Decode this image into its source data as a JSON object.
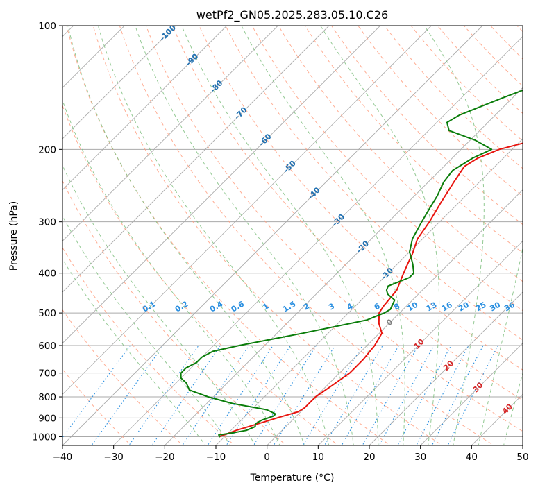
{
  "chart_data": {
    "type": "line",
    "subtype": "skew-t log-p diagram",
    "title": "wetPf2_GN05.2025.283.05.10.C26",
    "xlabel": "Temperature (°C)",
    "ylabel": "Pressure (hPa)",
    "xlim": [
      -40,
      50
    ],
    "ylim": [
      1050,
      100
    ],
    "y_scale": "log",
    "grid": true,
    "x_ticks": [
      "−40",
      "−30",
      "−20",
      "−10",
      "0",
      "10",
      "20",
      "30",
      "40",
      "50"
    ],
    "y_ticks": [
      "100",
      "200",
      "300",
      "400",
      "500",
      "600",
      "700",
      "800",
      "900",
      "1000"
    ],
    "y_tick_values": [
      100,
      200,
      300,
      400,
      500,
      600,
      700,
      800,
      900,
      1000
    ],
    "isotherm_labels": [
      "-100",
      "-90",
      "-80",
      "-70",
      "-60",
      "-50",
      "-40",
      "-30",
      "-20",
      "-10",
      "0",
      "10",
      "20",
      "30",
      "40"
    ],
    "mixing_ratio_labels": [
      "0.1",
      "0.2",
      "0.4",
      "0.6",
      "1",
      "1.5",
      "2",
      "3",
      "4",
      "6",
      "8",
      "10",
      "13",
      "16",
      "20",
      "25",
      "30",
      "36"
    ],
    "colors": {
      "temperature": "#e8140e",
      "dewpoint": "#0a7d0a",
      "isotherm_label_cold": "#1f6fb0",
      "isotherm_label_warm": "#d62728",
      "isotherm_label_zero": "#808080",
      "mixing_ratio": "#2a8fe0",
      "dry_adiabat": "#ff9f80",
      "moist_adiabat": "#80c080",
      "grid": "#aaaaaa"
    },
    "series": [
      {
        "key": "temperature",
        "points": [
          [
            -11.0,
            1000
          ],
          [
            -9.0,
            965
          ],
          [
            -6.0,
            930
          ],
          [
            -3.0,
            895
          ],
          [
            -0.5,
            870
          ],
          [
            0.0,
            850
          ],
          [
            0.0,
            800
          ],
          [
            1.0,
            750
          ],
          [
            2.0,
            700
          ],
          [
            2.0,
            650
          ],
          [
            1.5,
            600
          ],
          [
            0.5,
            560
          ],
          [
            -2.0,
            530
          ],
          [
            -4.0,
            500
          ],
          [
            -4.5,
            480
          ],
          [
            -5.0,
            440
          ],
          [
            -6.0,
            420
          ],
          [
            -7.0,
            400
          ],
          [
            -8.0,
            380
          ],
          [
            -9.0,
            360
          ],
          [
            -11.0,
            330
          ],
          [
            -12.0,
            300
          ],
          [
            -13.5,
            270
          ],
          [
            -15.0,
            240
          ],
          [
            -16.0,
            220
          ],
          [
            -15.0,
            210
          ],
          [
            -12.5,
            200
          ],
          [
            -9.0,
            193
          ],
          [
            -5.0,
            187
          ],
          [
            0.0,
            180
          ],
          [
            5.0,
            171
          ],
          [
            10.0,
            161
          ],
          [
            13.0,
            150
          ],
          [
            15.0,
            140
          ],
          [
            17.0,
            130
          ],
          [
            20.0,
            121
          ],
          [
            22.0,
            113
          ],
          [
            23.5,
            107
          ],
          [
            25.0,
            100
          ]
        ]
      },
      {
        "key": "dewpoint",
        "points": [
          [
            -11.0,
            1000
          ],
          [
            -11.5,
            990
          ],
          [
            -9.0,
            978
          ],
          [
            -7.0,
            965
          ],
          [
            -6.0,
            945
          ],
          [
            -6.5,
            930
          ],
          [
            -6.0,
            912
          ],
          [
            -4.5,
            890
          ],
          [
            -4.5,
            880
          ],
          [
            -7.0,
            860
          ],
          [
            -15.0,
            830
          ],
          [
            -21.0,
            800
          ],
          [
            -26.0,
            770
          ],
          [
            -28.0,
            740
          ],
          [
            -30.0,
            720
          ],
          [
            -31.0,
            700
          ],
          [
            -31.0,
            680
          ],
          [
            -30.0,
            660
          ],
          [
            -30.0,
            640
          ],
          [
            -29.0,
            620
          ],
          [
            -25.0,
            600
          ],
          [
            -15.0,
            560
          ],
          [
            -5.0,
            520
          ],
          [
            -3.0,
            500
          ],
          [
            -2.5,
            490
          ],
          [
            -3.5,
            465
          ],
          [
            -6.0,
            450
          ],
          [
            -7.0,
            440
          ],
          [
            -7.5,
            430
          ],
          [
            -5.0,
            410
          ],
          [
            -5.0,
            400
          ],
          [
            -7.0,
            380
          ],
          [
            -10.0,
            355
          ],
          [
            -12.0,
            330
          ],
          [
            -13.5,
            300
          ],
          [
            -14.5,
            280
          ],
          [
            -15.5,
            260
          ],
          [
            -17.0,
            240
          ],
          [
            -17.5,
            225
          ],
          [
            -16.0,
            210
          ],
          [
            -14.0,
            200
          ],
          [
            -19.0,
            190
          ],
          [
            -26.0,
            180
          ],
          [
            -28.0,
            172
          ],
          [
            -27.0,
            165
          ],
          [
            -22.0,
            150
          ],
          [
            -16.0,
            135
          ],
          [
            -11.0,
            120
          ],
          [
            -7.0,
            111
          ],
          [
            -3.0,
            103
          ],
          [
            -2.0,
            100
          ]
        ]
      }
    ]
  }
}
